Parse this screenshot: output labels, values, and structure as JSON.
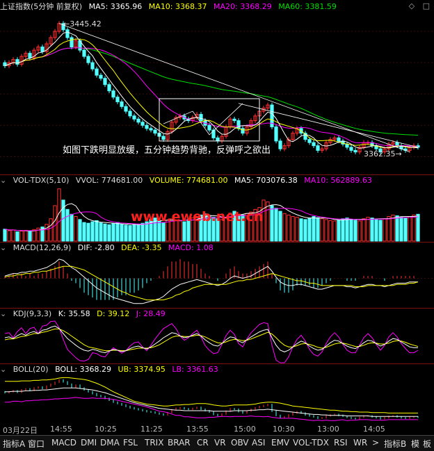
{
  "colors": {
    "up": "#ff3232",
    "down": "#54ffff",
    "ma5": "#ffffff",
    "ma10": "#ffff00",
    "ma20": "#ff00ff",
    "ma60": "#00e000",
    "label": "#cccccc",
    "watermark": "#ff2020"
  },
  "main": {
    "title": "上证指数(5分钟 前复权)",
    "ma5": "MA5: 3365.96",
    "ma10": "MA10: 3368.37",
    "ma20": "MA20: 3368.29",
    "ma60": "MA60: 3381.59",
    "high_label": "3445.42",
    "low_label": "3362.35",
    "annotation": "如图下跌明显放缓，五分钟趋势背驰，反弹呼之欲出",
    "y_range": [
      3350,
      3452
    ],
    "window_icons": [
      "diamond-icon",
      "square-icon"
    ]
  },
  "volume": {
    "title": "VOL-TDX(5,10)",
    "vvol": "VVOL: 774681.00",
    "volume": "VOLUME: 774681.00",
    "ma5": "MA5: 703076.38",
    "ma10": "MA10: 562889.63",
    "watermark": "www.eweb.net.cn"
  },
  "macd": {
    "title": "MACD(12,26,9)",
    "dif": "DIF: -2.80",
    "dea": "DEA: -3.35",
    "macd": "MACD: 1.08"
  },
  "kdj": {
    "title": "KDJ(9,3,3)",
    "k": "K: 35.58",
    "d": "D: 39.12",
    "j": "J: 28.49"
  },
  "boll": {
    "title": "BOLL(20)",
    "boll": "BOLL: 3368.29",
    "ub": "UB: 3374.95",
    "lb": "LB: 3361.63"
  },
  "time_axis": [
    "03月22日",
    "14:55",
    "10:25",
    "11:25",
    "13:55",
    "15:00",
    "10:30",
    "13:00",
    "14:05"
  ],
  "tabs": [
    "指标A",
    "窗口",
    "MACD",
    "DMI",
    "DMA",
    "FSL",
    "TRIX",
    "BRAR",
    "CR",
    "VR",
    "OBV",
    "ASI",
    "EMV",
    "VOL-TDX",
    "RSI",
    "WR",
    ">",
    "指标B",
    "模",
    "板"
  ],
  "series": {
    "close": [
      3418,
      3420,
      3422,
      3419,
      3424,
      3426,
      3423,
      3428,
      3430,
      3427,
      3432,
      3436,
      3440,
      3445,
      3441,
      3436,
      3430,
      3434,
      3428,
      3424,
      3420,
      3416,
      3412,
      3410,
      3406,
      3402,
      3398,
      3395,
      3392,
      3389,
      3386,
      3384,
      3382,
      3380,
      3378,
      3377,
      3375,
      3373,
      3371,
      3376,
      3382,
      3385,
      3386,
      3384,
      3383,
      3385,
      3387,
      3383,
      3380,
      3377,
      3372,
      3370,
      3373,
      3379,
      3384,
      3383,
      3378,
      3375,
      3379,
      3383,
      3386,
      3389,
      3391,
      3393,
      3379,
      3370,
      3365,
      3367,
      3371,
      3375,
      3378,
      3375,
      3371,
      3369,
      3367,
      3364,
      3365,
      3369,
      3371,
      3372,
      3370,
      3368,
      3366,
      3364,
      3363,
      3366,
      3369,
      3369,
      3367,
      3365,
      3363,
      3365,
      3368,
      3369,
      3367,
      3365,
      3364,
      3366,
      3367,
      3366
    ],
    "open": [
      3420,
      3418,
      3420,
      3422,
      3419,
      3424,
      3426,
      3423,
      3428,
      3430,
      3427,
      3432,
      3436,
      3440,
      3445,
      3441,
      3436,
      3430,
      3434,
      3428,
      3424,
      3420,
      3416,
      3412,
      3410,
      3406,
      3402,
      3398,
      3395,
      3392,
      3389,
      3386,
      3384,
      3382,
      3380,
      3378,
      3377,
      3375,
      3373,
      3371,
      3376,
      3382,
      3385,
      3386,
      3384,
      3383,
      3385,
      3387,
      3383,
      3380,
      3377,
      3372,
      3370,
      3373,
      3379,
      3384,
      3383,
      3378,
      3375,
      3379,
      3383,
      3386,
      3389,
      3391,
      3393,
      3379,
      3370,
      3365,
      3367,
      3371,
      3375,
      3378,
      3375,
      3371,
      3369,
      3367,
      3364,
      3365,
      3369,
      3371,
      3372,
      3370,
      3368,
      3366,
      3364,
      3363,
      3366,
      3369,
      3369,
      3367,
      3365,
      3363,
      3365,
      3368,
      3369,
      3367,
      3365,
      3364,
      3366,
      3367
    ],
    "volume": [
      32,
      28,
      30,
      25,
      27,
      29,
      26,
      31,
      35,
      38,
      45,
      60,
      95,
      140,
      110,
      85,
      72,
      66,
      58,
      50,
      48,
      52,
      55,
      49,
      46,
      44,
      47,
      50,
      45,
      43,
      42,
      44,
      46,
      48,
      52,
      58,
      62,
      55,
      50,
      56,
      60,
      57,
      54,
      52,
      58,
      62,
      66,
      70,
      73,
      69,
      64,
      60,
      58,
      62,
      75,
      80,
      72,
      70,
      74,
      78,
      85,
      90,
      110,
      105,
      95,
      88,
      80,
      74,
      70,
      66,
      64,
      60,
      58,
      62,
      66,
      63,
      60,
      58,
      55,
      54,
      57,
      60,
      62,
      58,
      56,
      54,
      60,
      64,
      62,
      58,
      56,
      60,
      66,
      70,
      68,
      64,
      62,
      66,
      70,
      72
    ],
    "macd_dif": [
      2,
      3,
      4,
      4,
      5,
      5,
      6,
      6,
      7,
      8,
      9,
      11,
      13,
      16,
      15,
      12,
      9,
      7,
      4,
      1,
      -2,
      -5,
      -8,
      -10,
      -12,
      -14,
      -16,
      -17,
      -18,
      -19,
      -20,
      -21,
      -21,
      -21,
      -20,
      -19,
      -18,
      -17,
      -15,
      -12,
      -9,
      -7,
      -5,
      -4,
      -3,
      -2,
      -1,
      -2,
      -3,
      -4,
      -5,
      -6,
      -5,
      -3,
      0,
      2,
      1,
      0,
      1,
      2,
      4,
      6,
      8,
      10,
      6,
      1,
      -3,
      -5,
      -6,
      -6,
      -5,
      -5,
      -6,
      -7,
      -8,
      -9,
      -9,
      -8,
      -7,
      -6,
      -6,
      -6,
      -7,
      -7,
      -8,
      -7,
      -6,
      -5,
      -5,
      -6,
      -6,
      -7,
      -6,
      -5,
      -4,
      -4,
      -4,
      -3,
      -3,
      -3
    ],
    "macd_dea": [
      1,
      2,
      2,
      3,
      3,
      4,
      4,
      5,
      5,
      6,
      6,
      7,
      8,
      9,
      10,
      10,
      10,
      9,
      8,
      7,
      5,
      3,
      1,
      -1,
      -3,
      -5,
      -7,
      -9,
      -11,
      -12,
      -14,
      -15,
      -16,
      -17,
      -18,
      -18,
      -18,
      -18,
      -18,
      -17,
      -16,
      -14,
      -13,
      -11,
      -10,
      -8,
      -7,
      -6,
      -5,
      -5,
      -5,
      -5,
      -5,
      -5,
      -4,
      -3,
      -2,
      -2,
      -1,
      -1,
      0,
      1,
      2,
      3,
      4,
      3,
      2,
      1,
      0,
      -1,
      -2,
      -2,
      -3,
      -4,
      -4,
      -5,
      -6,
      -6,
      -6,
      -6,
      -6,
      -6,
      -6,
      -6,
      -7,
      -7,
      -7,
      -6,
      -6,
      -6,
      -6,
      -6,
      -6,
      -6,
      -5,
      -5,
      -5,
      -4,
      -4,
      -3
    ],
    "kdj_k": [
      60,
      62,
      58,
      65,
      70,
      66,
      72,
      75,
      70,
      78,
      80,
      85,
      88,
      82,
      70,
      58,
      50,
      42,
      35,
      30,
      28,
      32,
      30,
      26,
      24,
      28,
      32,
      30,
      27,
      29,
      34,
      38,
      40,
      36,
      33,
      38,
      45,
      52,
      60,
      66,
      72,
      70,
      64,
      60,
      62,
      66,
      70,
      64,
      55,
      48,
      42,
      40,
      46,
      55,
      62,
      60,
      52,
      48,
      55,
      62,
      68,
      74,
      78,
      80,
      60,
      42,
      30,
      26,
      30,
      38,
      46,
      52,
      48,
      40,
      34,
      30,
      32,
      40,
      48,
      54,
      52,
      46,
      40,
      36,
      34,
      40,
      48,
      54,
      52,
      46,
      40,
      44,
      52,
      58,
      56,
      50,
      44,
      38,
      36,
      36
    ],
    "kdj_d": [
      55,
      57,
      57,
      60,
      63,
      64,
      67,
      70,
      70,
      73,
      75,
      78,
      81,
      81,
      77,
      71,
      64,
      57,
      50,
      43,
      38,
      36,
      34,
      31,
      29,
      29,
      30,
      30,
      29,
      29,
      31,
      33,
      35,
      35,
      35,
      36,
      39,
      43,
      49,
      55,
      61,
      64,
      64,
      63,
      63,
      64,
      66,
      65,
      62,
      57,
      52,
      48,
      47,
      50,
      54,
      56,
      55,
      53,
      54,
      57,
      61,
      65,
      69,
      73,
      69,
      60,
      50,
      42,
      38,
      38,
      41,
      45,
      46,
      44,
      41,
      37,
      35,
      37,
      41,
      45,
      47,
      47,
      45,
      42,
      39,
      39,
      42,
      46,
      48,
      47,
      45,
      45,
      47,
      51,
      53,
      52,
      49,
      45,
      42,
      39
    ],
    "kdj_j": [
      70,
      72,
      60,
      75,
      84,
      70,
      82,
      85,
      70,
      88,
      90,
      99,
      100,
      84,
      56,
      32,
      22,
      12,
      5,
      4,
      8,
      24,
      22,
      16,
      14,
      26,
      36,
      30,
      23,
      29,
      40,
      48,
      50,
      38,
      29,
      42,
      57,
      70,
      82,
      88,
      94,
      82,
      64,
      54,
      60,
      70,
      78,
      62,
      41,
      30,
      22,
      24,
      44,
      65,
      78,
      68,
      46,
      38,
      57,
      72,
      82,
      92,
      96,
      94,
      42,
      6,
      0,
      0,
      14,
      38,
      56,
      66,
      52,
      32,
      20,
      16,
      26,
      46,
      62,
      72,
      62,
      44,
      30,
      24,
      24,
      42,
      60,
      70,
      60,
      44,
      30,
      42,
      62,
      72,
      62,
      46,
      34,
      24,
      24,
      30
    ],
    "boll_ub": [
      3442,
      3442,
      3442,
      3442,
      3443,
      3443,
      3443,
      3444,
      3444,
      3445,
      3445,
      3446,
      3447,
      3449,
      3450,
      3450,
      3449,
      3448,
      3447,
      3446,
      3444,
      3441,
      3438,
      3434,
      3430,
      3425,
      3420,
      3416,
      3412,
      3408,
      3404,
      3400,
      3398,
      3396,
      3394,
      3393,
      3392,
      3391,
      3390,
      3390,
      3391,
      3392,
      3392,
      3393,
      3393,
      3394,
      3395,
      3395,
      3395,
      3394,
      3392,
      3391,
      3390,
      3390,
      3391,
      3392,
      3392,
      3392,
      3392,
      3393,
      3394,
      3396,
      3397,
      3398,
      3398,
      3397,
      3396,
      3394,
      3392,
      3390,
      3389,
      3388,
      3387,
      3386,
      3385,
      3384,
      3383,
      3382,
      3381,
      3381,
      3380,
      3379,
      3379,
      3378,
      3378,
      3377,
      3377,
      3377,
      3376,
      3376,
      3376,
      3376,
      3375,
      3375,
      3375,
      3375,
      3375,
      3375,
      3375,
      3375
    ],
    "boll_mid": [
      3420,
      3420,
      3421,
      3421,
      3421,
      3422,
      3422,
      3423,
      3423,
      3424,
      3424,
      3425,
      3426,
      3427,
      3428,
      3428,
      3428,
      3428,
      3427,
      3426,
      3425,
      3424,
      3422,
      3420,
      3418,
      3415,
      3412,
      3409,
      3406,
      3403,
      3400,
      3397,
      3395,
      3393,
      3391,
      3389,
      3387,
      3385,
      3384,
      3383,
      3382,
      3381,
      3381,
      3380,
      3380,
      3380,
      3380,
      3380,
      3380,
      3380,
      3379,
      3379,
      3379,
      3379,
      3379,
      3380,
      3380,
      3380,
      3380,
      3381,
      3381,
      3382,
      3382,
      3383,
      3382,
      3381,
      3380,
      3379,
      3378,
      3377,
      3376,
      3375,
      3374,
      3373,
      3372,
      3372,
      3371,
      3371,
      3370,
      3370,
      3370,
      3370,
      3369,
      3369,
      3369,
      3369,
      3369,
      3369,
      3368,
      3368,
      3368,
      3368,
      3368,
      3368,
      3368,
      3368,
      3368,
      3368,
      3368,
      3368
    ],
    "boll_lb": [
      3398,
      3398,
      3400,
      3400,
      3399,
      3401,
      3401,
      3402,
      3402,
      3403,
      3403,
      3404,
      3405,
      3405,
      3406,
      3406,
      3407,
      3408,
      3407,
      3406,
      3406,
      3407,
      3406,
      3406,
      3406,
      3405,
      3404,
      3402,
      3400,
      3398,
      3396,
      3394,
      3392,
      3390,
      3388,
      3385,
      3382,
      3379,
      3378,
      3376,
      3373,
      3370,
      3370,
      3367,
      3367,
      3366,
      3365,
      3365,
      3365,
      3366,
      3366,
      3367,
      3368,
      3368,
      3367,
      3368,
      3368,
      3368,
      3368,
      3369,
      3368,
      3368,
      3367,
      3368,
      3366,
      3365,
      3364,
      3364,
      3364,
      3364,
      3363,
      3362,
      3361,
      3360,
      3359,
      3360,
      3359,
      3360,
      3359,
      3359,
      3360,
      3361,
      3359,
      3360,
      3360,
      3361,
      3361,
      3361,
      3360,
      3360,
      3360,
      3360,
      3361,
      3361,
      3361,
      3361,
      3361,
      3361,
      3361,
      3361
    ]
  }
}
